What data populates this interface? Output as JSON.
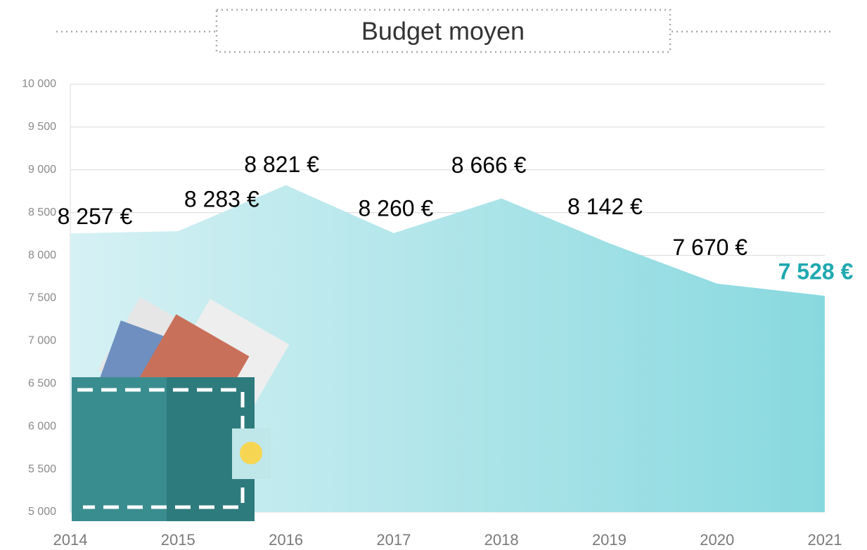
{
  "chart_data": {
    "type": "area",
    "title": "Budget moyen",
    "categories": [
      "2014",
      "2015",
      "2016",
      "2017",
      "2018",
      "2019",
      "2020",
      "2021"
    ],
    "values": [
      8257,
      8283,
      8821,
      8260,
      8666,
      8142,
      7670,
      7528
    ],
    "value_labels": [
      "8 257 €",
      "8 283 €",
      "8 821 €",
      "8 260 €",
      "8 666 €",
      "8 142 €",
      "7 670 €",
      "7 528 €"
    ],
    "ylim": [
      5000,
      10000
    ],
    "yticks": [
      {
        "value": 5000,
        "label": "5 000"
      },
      {
        "value": 5500,
        "label": "5 500"
      },
      {
        "value": 6000,
        "label": "6 000"
      },
      {
        "value": 6500,
        "label": "6 500"
      },
      {
        "value": 7000,
        "label": "7 000"
      },
      {
        "value": 7500,
        "label": "7 500"
      },
      {
        "value": 8000,
        "label": "8 000"
      },
      {
        "value": 8500,
        "label": "8 500"
      },
      {
        "value": 9000,
        "label": "9 000"
      },
      {
        "value": 9500,
        "label": "9 500"
      },
      {
        "value": 10000,
        "label": "10 000"
      }
    ],
    "grid": true,
    "color_start": "#d6f1f4",
    "color_end": "#88d9df"
  }
}
